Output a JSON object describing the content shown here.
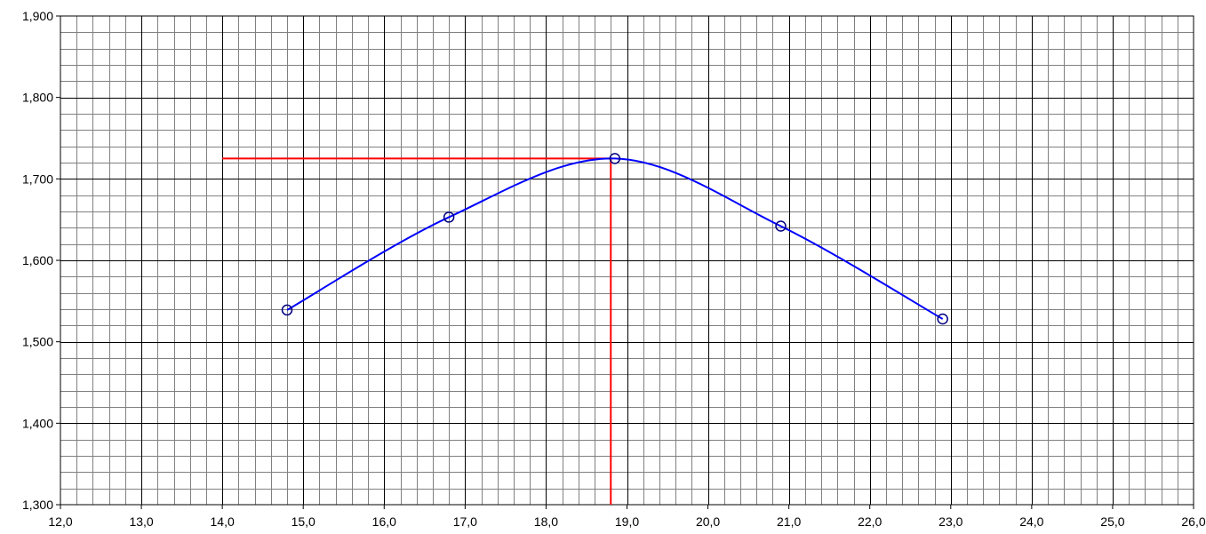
{
  "chart_data": {
    "type": "scatter",
    "title": "",
    "xlabel": "",
    "ylabel": "",
    "xlim": [
      12.0,
      26.0
    ],
    "ylim": [
      1.3,
      1.9
    ],
    "x_major_step": 1.0,
    "y_major_step": 0.1,
    "x_minor_divisions": 5,
    "y_minor_divisions": 5,
    "grid": true,
    "legend": "none",
    "x_tick_labels": [
      "12,0",
      "13,0",
      "14,0",
      "15,0",
      "16,0",
      "17,0",
      "18,0",
      "19,0",
      "20,0",
      "21,0",
      "22,0",
      "23,0",
      "24,0",
      "25,0",
      "26,0"
    ],
    "y_tick_labels": [
      "1,300",
      "1,400",
      "1,500",
      "1,600",
      "1,700",
      "1,800",
      "1,900"
    ],
    "series": [
      {
        "x": [
          14.8,
          16.8,
          18.85,
          20.9,
          22.9
        ],
        "y": [
          1.539,
          1.653,
          1.725,
          1.642,
          1.528
        ],
        "color": "#0000ff",
        "marker": "circle",
        "marker_color": "#000080",
        "line": "smooth"
      }
    ],
    "reference_lines": [
      {
        "orientation": "horizontal",
        "y": 1.725,
        "x_from": 14.0,
        "x_to": 18.8,
        "color": "#ff0000"
      },
      {
        "orientation": "vertical",
        "x": 18.8,
        "y_from": 1.3,
        "y_to": 1.725,
        "color": "#ff0000"
      }
    ],
    "colors": {
      "major_grid": "#000000",
      "minor_grid": "#808080",
      "background": "#ffffff"
    }
  }
}
